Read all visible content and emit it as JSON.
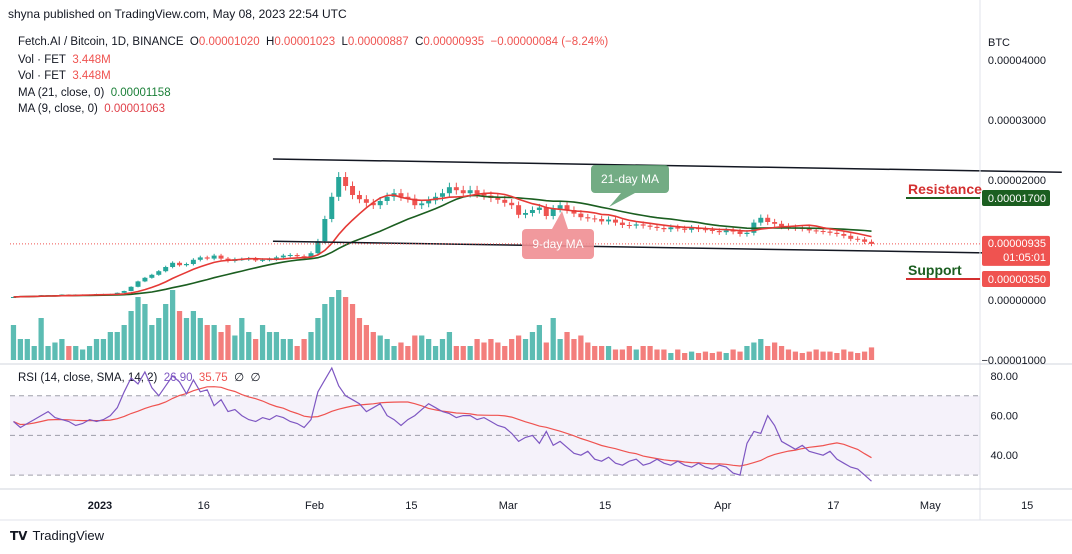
{
  "header": {
    "publish_line": "shyna published on TradingView.com, May 08, 2023 22:54 UTC"
  },
  "legend": {
    "symbol": "Fetch.AI / Bitcoin, 1D, BINANCE",
    "o_label": "O",
    "o_value": "0.00001020",
    "h_label": "H",
    "h_value": "0.00001023",
    "l_label": "L",
    "l_value": "0.00000887",
    "c_label": "C",
    "c_value": "0.00000935",
    "change": "−0.00000084 (−8.24%)",
    "vol1_label": "Vol · FET",
    "vol1_value": "3.448M",
    "vol2_label": "Vol · FET",
    "vol2_value": "3.448M",
    "ma21_label": "MA (21, close, 0)",
    "ma21_value": "0.00001158",
    "ma9_label": "MA (9, close, 0)",
    "ma9_value": "0.00001063",
    "rsi_label": "RSI (14, close, SMA, 14, 2)",
    "rsi_value": "26.90",
    "rsi_sma_value": "35.75",
    "rsi_extra1": "∅",
    "rsi_extra2": "∅"
  },
  "price_axis": {
    "currency": "BTC",
    "ticks": [
      "0.00004000",
      "0.00003000",
      "0.00002000",
      "0.00000000",
      "−0.00001000"
    ],
    "last_price": "0.00000935",
    "countdown": "01:05:01"
  },
  "rsi_axis": {
    "ticks": [
      "80.00",
      "60.00",
      "40.00"
    ]
  },
  "time_axis": {
    "ticks": [
      "2023",
      "16",
      "Feb",
      "15",
      "Mar",
      "15",
      "Apr",
      "17",
      "May",
      "15"
    ]
  },
  "annotations": {
    "resistance_label": "Resistance",
    "resistance_value": "0.00001700",
    "support_label": "Support",
    "support_value": "0.00000350",
    "ma21_box": "21-day MA",
    "ma9_box": "9-day MA"
  },
  "footer": {
    "brand": "TradingView"
  },
  "colors": {
    "up": "#26a69a",
    "down": "#ef5350",
    "ma21": "#1b5e20",
    "ma9": "#e53935",
    "rsi_line": "#7e57c2",
    "rsi_sma": "#ef5350",
    "trendline": "#131722",
    "resistance": "#d32f2f"
  },
  "chart_data": {
    "type": "candlestick",
    "symbol": "Fetch.AI / Bitcoin",
    "interval": "1D",
    "x_range": [
      "2022-12-19",
      "2023-05-08"
    ],
    "y_unit": "BTC",
    "ylim": [
      -1e-05,
      4.5e-05
    ],
    "close": [
      5e-07,
      6e-07,
      6e-07,
      7e-07,
      8e-07,
      8e-07,
      8e-07,
      9e-07,
      8e-07,
      9e-07,
      9e-07,
      9e-07,
      1e-06,
      1e-06,
      1e-06,
      1.2e-06,
      1.5e-06,
      2.2e-06,
      3.1e-06,
      3.7e-06,
      4.2e-06,
      4.8e-06,
      5.5e-06,
      6.2e-06,
      5.8e-06,
      6e-06,
      6.7e-06,
      7.1e-06,
      6.9e-06,
      7.4e-06,
      6.9e-06,
      6.5e-06,
      6.8e-06,
      6.8e-06,
      6.9e-06,
      6.6e-06,
      6.7e-06,
      6.8e-06,
      7.1e-06,
      7.4e-06,
      7.5e-06,
      7.3e-06,
      7.2e-06,
      7.8e-06,
      9.8e-06,
      1.35e-05,
      1.72e-05,
      2.05e-05,
      1.9e-05,
      1.75e-05,
      1.68e-05,
      1.62e-05,
      1.58e-05,
      1.65e-05,
      1.72e-05,
      1.78e-05,
      1.72e-05,
      1.69e-05,
      1.58e-05,
      1.61e-05,
      1.66e-05,
      1.72e-05,
      1.78e-05,
      1.88e-05,
      1.83e-05,
      1.78e-05,
      1.83e-05,
      1.77e-05,
      1.74e-05,
      1.7e-05,
      1.67e-05,
      1.62e-05,
      1.58e-05,
      1.42e-05,
      1.45e-05,
      1.5e-05,
      1.54e-05,
      1.4e-05,
      1.52e-05,
      1.58e-05,
      1.5e-05,
      1.44e-05,
      1.38e-05,
      1.36e-05,
      1.35e-05,
      1.31e-05,
      1.34e-05,
      1.29e-05,
      1.25e-05,
      1.24e-05,
      1.26e-05,
      1.24e-05,
      1.22e-05,
      1.2e-05,
      1.18e-05,
      1.21e-05,
      1.19e-05,
      1.17e-05,
      1.2e-05,
      1.18e-05,
      1.17e-05,
      1.15e-05,
      1.13e-05,
      1.16e-05,
      1.14e-05,
      1.1e-05,
      1.12e-05,
      1.29e-05,
      1.37e-05,
      1.3e-05,
      1.27e-05,
      1.23e-05,
      1.21e-05,
      1.2e-05,
      1.19e-05,
      1.16e-05,
      1.15e-05,
      1.14e-05,
      1.12e-05,
      1.1e-05,
      1.07e-05,
      1.02e-05,
      1.01e-05,
      9.7e-06,
      9.35e-06
    ],
    "volume_relative": [
      0.5,
      0.3,
      0.3,
      0.2,
      0.6,
      0.2,
      0.25,
      0.3,
      0.2,
      0.2,
      0.15,
      0.2,
      0.3,
      0.3,
      0.4,
      0.4,
      0.5,
      0.7,
      0.9,
      0.8,
      0.5,
      0.6,
      0.8,
      1.0,
      0.7,
      0.6,
      0.7,
      0.6,
      0.5,
      0.5,
      0.4,
      0.5,
      0.35,
      0.6,
      0.4,
      0.3,
      0.5,
      0.4,
      0.4,
      0.3,
      0.3,
      0.2,
      0.3,
      0.4,
      0.6,
      0.8,
      0.9,
      1.0,
      0.9,
      0.8,
      0.6,
      0.5,
      0.4,
      0.35,
      0.3,
      0.2,
      0.25,
      0.2,
      0.35,
      0.35,
      0.3,
      0.2,
      0.3,
      0.4,
      0.2,
      0.2,
      0.2,
      0.3,
      0.25,
      0.3,
      0.25,
      0.2,
      0.3,
      0.35,
      0.3,
      0.4,
      0.5,
      0.25,
      0.6,
      0.3,
      0.4,
      0.3,
      0.35,
      0.25,
      0.2,
      0.2,
      0.2,
      0.15,
      0.15,
      0.2,
      0.15,
      0.2,
      0.2,
      0.15,
      0.15,
      0.1,
      0.15,
      0.1,
      0.12,
      0.1,
      0.12,
      0.1,
      0.12,
      0.1,
      0.15,
      0.12,
      0.2,
      0.25,
      0.3,
      0.2,
      0.25,
      0.2,
      0.15,
      0.12,
      0.1,
      0.12,
      0.15,
      0.12,
      0.12,
      0.1,
      0.15,
      0.12,
      0.1,
      0.12,
      0.18
    ],
    "ma21_last": 1.158e-05,
    "ma9_last": 1.063e-05,
    "resistance": 1.7e-05,
    "support": 3.5e-06,
    "rsi": {
      "period": 14,
      "last": 26.9,
      "sma_last": 35.75,
      "ylim": [
        26,
        84
      ],
      "bands": [
        30,
        50,
        70
      ],
      "values": [
        57,
        54,
        56,
        58,
        60,
        62,
        59,
        58,
        57,
        55,
        56,
        58,
        57,
        58,
        60,
        64,
        72,
        79,
        76,
        82,
        74,
        70,
        75,
        80,
        77,
        71,
        78,
        72,
        73,
        65,
        68,
        62,
        63,
        60,
        58,
        57,
        59,
        58,
        60,
        59,
        57,
        56,
        54,
        58,
        72,
        78,
        84,
        75,
        70,
        68,
        66,
        62,
        64,
        66,
        60,
        58,
        55,
        58,
        60,
        63,
        66,
        64,
        62,
        61,
        59,
        60,
        60,
        58,
        59,
        57,
        55,
        54,
        51,
        47,
        49,
        50,
        46,
        52,
        45,
        47,
        44,
        41,
        40,
        42,
        38,
        37,
        39,
        36,
        35,
        37,
        38,
        35,
        36,
        38,
        36,
        35,
        37,
        35,
        34,
        36,
        34,
        33,
        35,
        34,
        31,
        30,
        46,
        52,
        51,
        60,
        55,
        47,
        45,
        43,
        45,
        42,
        41,
        40,
        42,
        38,
        36,
        34,
        33,
        30,
        26.9
      ]
    },
    "trendlines": [
      {
        "name": "Resistance",
        "from": {
          "date": "2023-01-26",
          "price": 2.35e-05
        },
        "to": {
          "date": "2023-05-20",
          "price": 2.13e-05
        }
      },
      {
        "name": "Support",
        "from": {
          "date": "2023-01-26",
          "price": 9.8e-06
        },
        "to": {
          "date": "2023-05-12",
          "price": 7.8e-06
        }
      }
    ]
  }
}
